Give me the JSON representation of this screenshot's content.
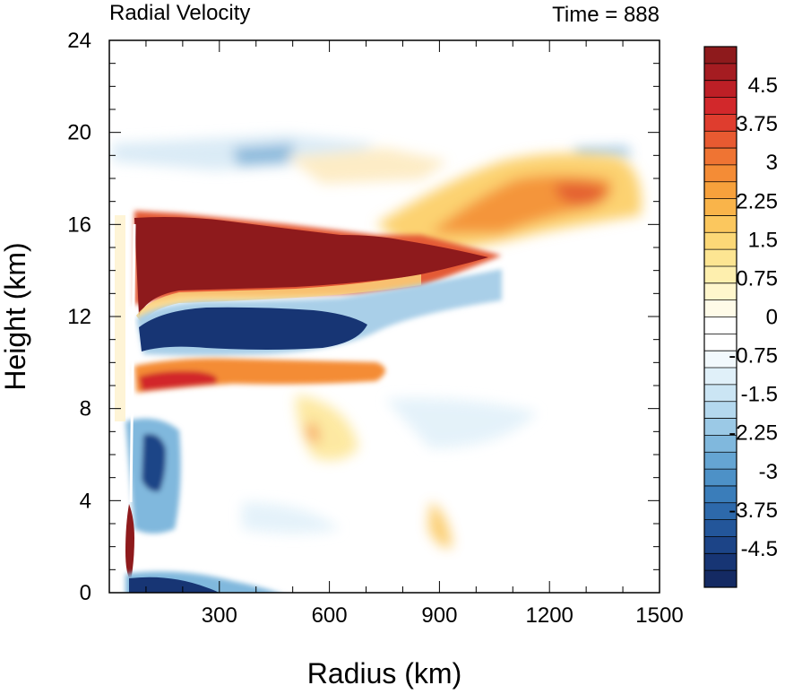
{
  "chart_data": {
    "type": "heatmap",
    "title_left": "Radial Velocity",
    "title_right": "Time = 888",
    "xlabel": "Radius (km)",
    "ylabel": "Height (km)",
    "xlim": [
      0,
      1500
    ],
    "ylim": [
      0,
      24
    ],
    "x_ticks": [
      300,
      600,
      900,
      1200,
      1500
    ],
    "y_ticks": [
      0,
      4,
      8,
      12,
      16,
      20,
      24
    ],
    "colorbar": {
      "labels": [
        "4.5",
        "3.75",
        "3",
        "2.25",
        "1.5",
        "0.75",
        "0",
        "-0.75",
        "-1.5",
        "-2.25",
        "-3",
        "-3.75",
        "-4.5"
      ],
      "label_values": [
        4.5,
        3.75,
        3,
        2.25,
        1.5,
        0.75,
        0,
        -0.75,
        -1.5,
        -2.25,
        -3,
        -3.75,
        -4.5
      ],
      "range": [
        -5.25,
        5.25
      ],
      "colors_top_to_bottom": [
        "#8e1a1c",
        "#a51c21",
        "#bd1f26",
        "#d2282b",
        "#df3d2e",
        "#e85a31",
        "#ef7433",
        "#f48c36",
        "#f7a13c",
        "#f9b44a",
        "#fbc75e",
        "#fcd877",
        "#fde592",
        "#feefae",
        "#fff6cc",
        "#fffbe8",
        "#ffffff",
        "#ffffff",
        "#f2f9fd",
        "#e0f0f9",
        "#cbe5f4",
        "#b4d8ee",
        "#9bc9e6",
        "#80b8dd",
        "#65a5d3",
        "#4d91c7",
        "#3a7dba",
        "#2d69ab",
        "#23569a",
        "#1c4487",
        "#173574",
        "#142a63"
      ]
    },
    "features": [
      {
        "name": "upper-level outflow jet",
        "sign": "positive",
        "r_range": [
          60,
          1060
        ],
        "z_range": [
          14,
          17.3
        ],
        "peak": 5.2
      },
      {
        "name": "outflow extension aloft",
        "sign": "positive",
        "r_range": [
          700,
          1450
        ],
        "z_range": [
          16,
          20.5
        ],
        "peak": 2.8
      },
      {
        "name": "upper inflow layer",
        "sign": "negative",
        "r_range": [
          60,
          900
        ],
        "z_range": [
          11,
          13.8
        ],
        "peak": -5.0
      },
      {
        "name": "mid-level outflow layer",
        "sign": "positive",
        "r_range": [
          60,
          800
        ],
        "z_range": [
          9,
          10.5
        ],
        "peak": 3.5
      },
      {
        "name": "mid-level inflow",
        "sign": "negative",
        "r_range": [
          60,
          150
        ],
        "z_range": [
          5,
          8
        ],
        "peak": -4.5
      },
      {
        "name": "low-level eyewall outflow",
        "sign": "positive",
        "r_range": [
          50,
          80
        ],
        "z_range": [
          1,
          5
        ],
        "peak": 5.5
      },
      {
        "name": "boundary layer inflow",
        "sign": "negative",
        "r_range": [
          50,
          400
        ],
        "z_range": [
          0,
          1.2
        ],
        "peak": -5.5
      },
      {
        "name": "stratospheric inflow",
        "sign": "negative",
        "r_range": [
          50,
          500
        ],
        "z_range": [
          19.5,
          21
        ],
        "peak": -2.0
      }
    ]
  }
}
